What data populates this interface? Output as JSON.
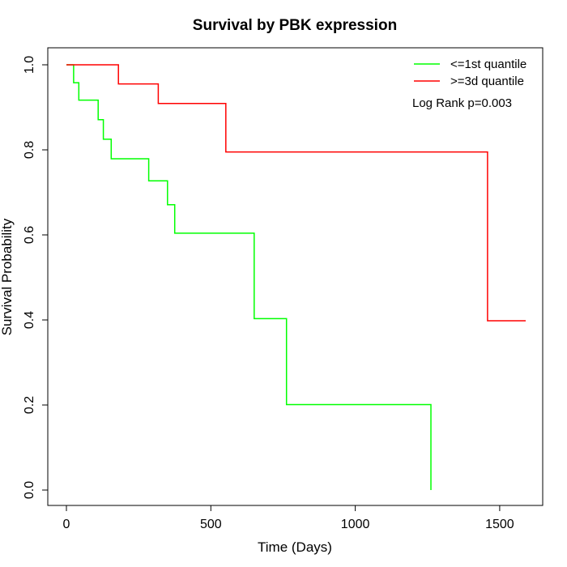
{
  "chart_data": {
    "type": "line",
    "step": true,
    "title": "Survival by PBK expression",
    "xlabel": "Time (Days)",
    "ylabel": "Survival Probability",
    "xlim": [
      0,
      1650
    ],
    "ylim": [
      0,
      1.0
    ],
    "x_ticks": [
      0,
      500,
      1000,
      1500
    ],
    "x_tick_labels": [
      "0",
      "500",
      "1000",
      "1500"
    ],
    "y_ticks": [
      0,
      0.2,
      0.4,
      0.6,
      0.8,
      1.0
    ],
    "y_tick_labels": [
      "0.0",
      "0.2",
      "0.4",
      "0.6",
      "0.8",
      "1.0"
    ],
    "grid": false,
    "legend_position": "top-right",
    "annotation": "Log Rank p=0.003",
    "series": [
      {
        "name": "<=1st quantile",
        "color": "#00ff00",
        "points": [
          [
            0,
            1.0
          ],
          [
            25,
            1.0
          ],
          [
            25,
            0.958
          ],
          [
            43,
            0.958
          ],
          [
            43,
            0.917
          ],
          [
            110,
            0.917
          ],
          [
            110,
            0.871
          ],
          [
            128,
            0.871
          ],
          [
            128,
            0.825
          ],
          [
            155,
            0.825
          ],
          [
            155,
            0.779
          ],
          [
            285,
            0.779
          ],
          [
            285,
            0.727
          ],
          [
            350,
            0.727
          ],
          [
            350,
            0.671
          ],
          [
            375,
            0.671
          ],
          [
            375,
            0.604
          ],
          [
            650,
            0.604
          ],
          [
            650,
            0.403
          ],
          [
            762,
            0.403
          ],
          [
            762,
            0.201
          ],
          [
            1262,
            0.201
          ],
          [
            1262,
            0.0
          ]
        ]
      },
      {
        "name": ">=3d quantile",
        "color": "#ff0000",
        "points": [
          [
            0,
            1.0
          ],
          [
            180,
            1.0
          ],
          [
            180,
            0.955
          ],
          [
            318,
            0.955
          ],
          [
            318,
            0.909
          ],
          [
            552,
            0.909
          ],
          [
            552,
            0.795
          ],
          [
            1458,
            0.795
          ],
          [
            1458,
            0.398
          ],
          [
            1590,
            0.398
          ]
        ]
      }
    ]
  }
}
